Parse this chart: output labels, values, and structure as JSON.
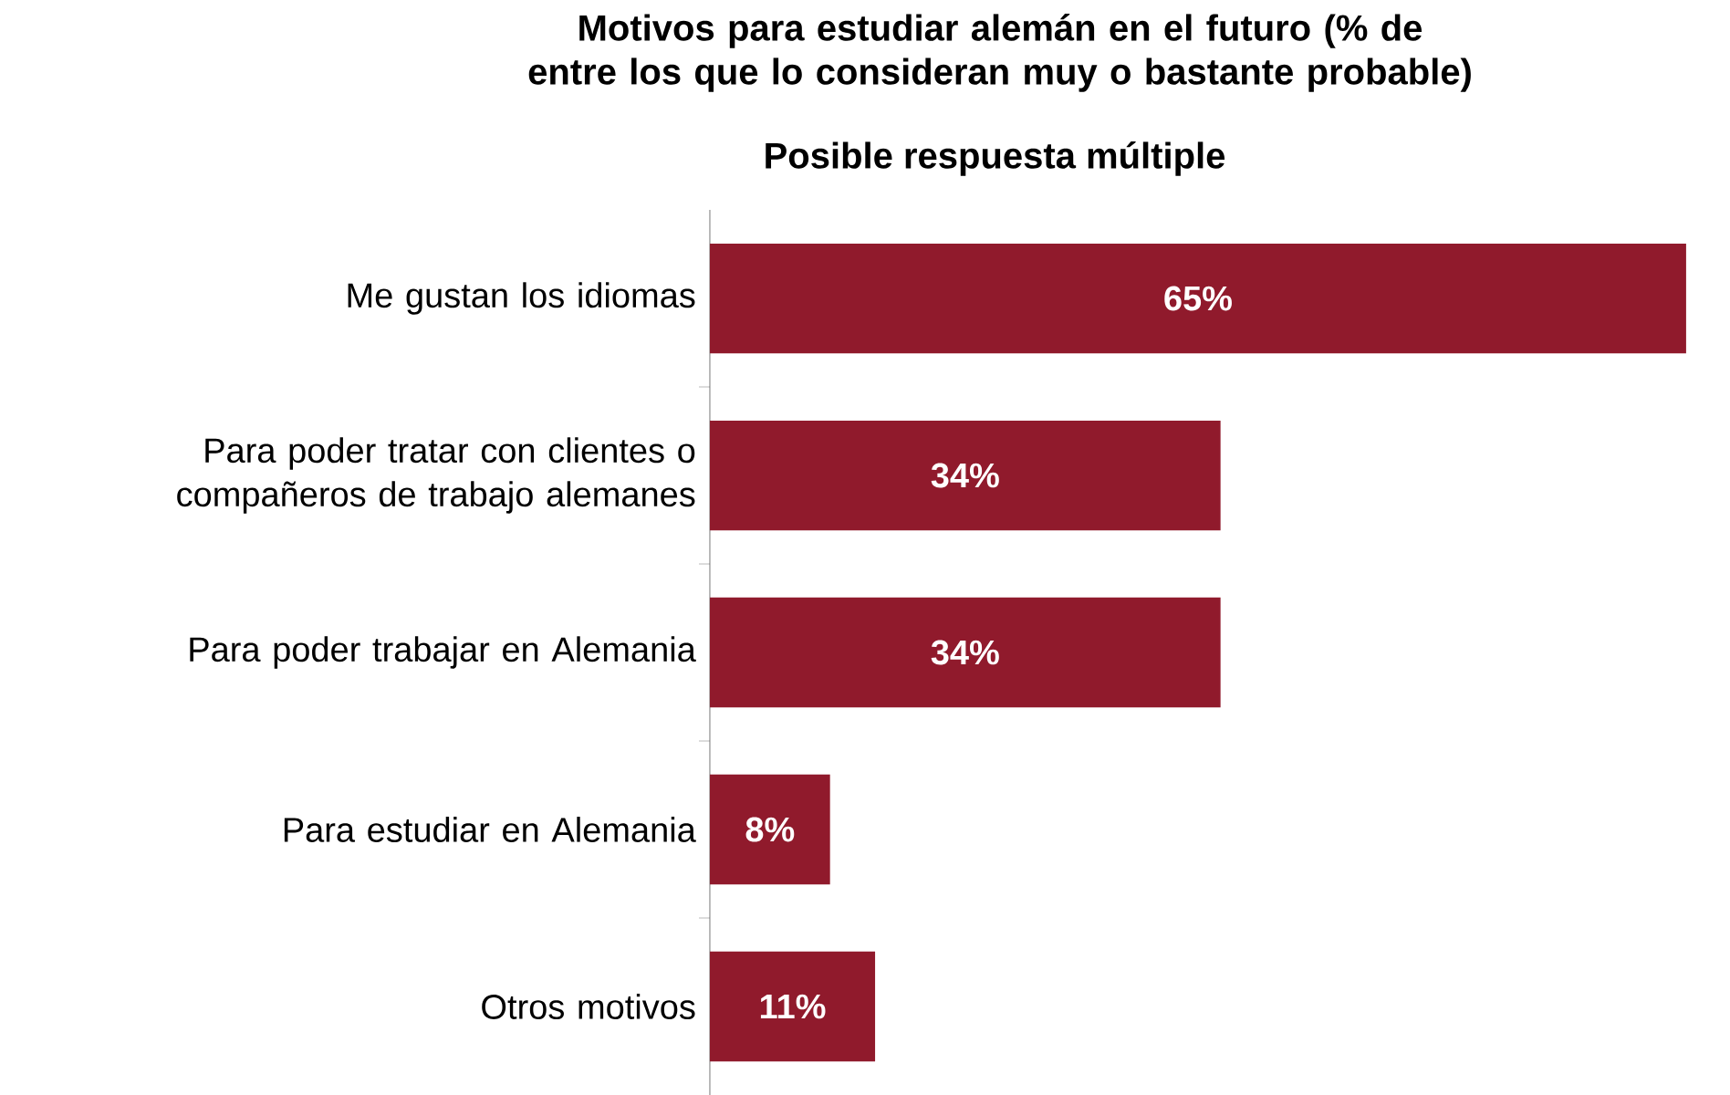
{
  "chart_data": {
    "type": "bar",
    "orientation": "horizontal",
    "title": "Motivos para estudiar alemán en el futuro (% de entre los que lo consideran muy o bastante probable)",
    "subtitle": "Posible respuesta múltiple",
    "categories": [
      "Me gustan los idiomas",
      "Para poder tratar con clientes o compañeros de trabajo alemanes",
      "Para poder trabajar en Alemania",
      "Para estudiar en Alemania",
      "Otros motivos"
    ],
    "values": [
      65,
      34,
      34,
      8,
      11
    ],
    "value_labels": [
      "65%",
      "34%",
      "34%",
      "8%",
      "11%"
    ],
    "color": "#901a2c"
  }
}
